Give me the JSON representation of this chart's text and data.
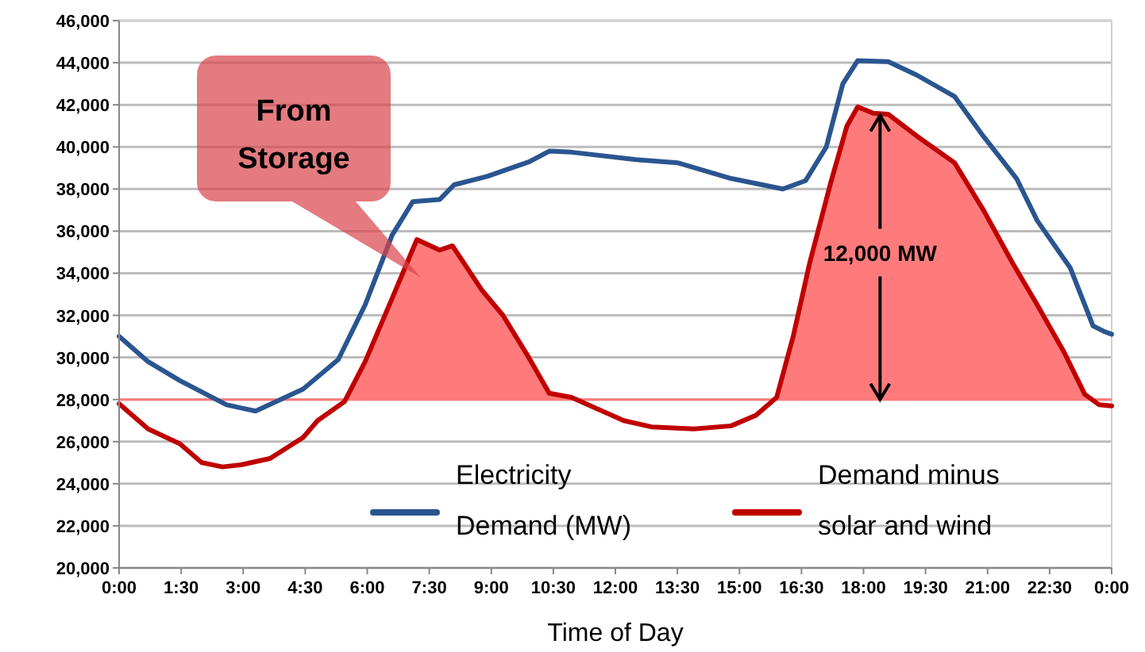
{
  "chart_data": {
    "type": "line",
    "xlabel": "Time of Day",
    "xlim": [
      0,
      24
    ],
    "xticks": [
      {
        "value": 0,
        "label": "0:00"
      },
      {
        "value": 1.5,
        "label": "1:30"
      },
      {
        "value": 3,
        "label": "3:00"
      },
      {
        "value": 4.5,
        "label": "4:30"
      },
      {
        "value": 6,
        "label": "6:00"
      },
      {
        "value": 7.5,
        "label": "7:30"
      },
      {
        "value": 9,
        "label": "9:00"
      },
      {
        "value": 10.5,
        "label": "10:30"
      },
      {
        "value": 12,
        "label": "12:00"
      },
      {
        "value": 13.5,
        "label": "13:30"
      },
      {
        "value": 15,
        "label": "15:00"
      },
      {
        "value": 16.5,
        "label": "16:30"
      },
      {
        "value": 18,
        "label": "18:00"
      },
      {
        "value": 19.5,
        "label": "19:30"
      },
      {
        "value": 21,
        "label": "21:00"
      },
      {
        "value": 22.5,
        "label": "22:30"
      },
      {
        "value": 24,
        "label": "0:00"
      }
    ],
    "ylim": [
      20000,
      46000
    ],
    "yticks": [
      {
        "value": 20000,
        "label": "20,000"
      },
      {
        "value": 22000,
        "label": "22,000"
      },
      {
        "value": 24000,
        "label": "24,000"
      },
      {
        "value": 26000,
        "label": "26,000"
      },
      {
        "value": 28000,
        "label": "28,000"
      },
      {
        "value": 30000,
        "label": "30,000"
      },
      {
        "value": 32000,
        "label": "32,000"
      },
      {
        "value": 34000,
        "label": "34,000"
      },
      {
        "value": 36000,
        "label": "36,000"
      },
      {
        "value": 38000,
        "label": "38,000"
      },
      {
        "value": 40000,
        "label": "40,000"
      },
      {
        "value": 42000,
        "label": "42,000"
      },
      {
        "value": 44000,
        "label": "44,000"
      },
      {
        "value": 46000,
        "label": "46,000"
      }
    ],
    "grid": "y",
    "legend": "bottom",
    "series": [
      {
        "name": "Electricity Demand (MW)",
        "color": "#2a5590",
        "x": [
          0,
          0.7,
          1.47,
          2.6,
          2.95,
          3.3,
          4.45,
          5.3,
          5.95,
          6.6,
          7.1,
          7.75,
          8.1,
          8.9,
          9.92,
          10.4,
          10.94,
          12.5,
          13.5,
          14.8,
          16.05,
          16.6,
          17.1,
          17.5,
          17.86,
          18.6,
          19.3,
          20.2,
          20.9,
          21.7,
          22.2,
          23.0,
          23.55,
          23.8,
          24
        ],
        "values": [
          31000,
          29800,
          28900,
          27750,
          27600,
          27450,
          28500,
          29900,
          32500,
          35800,
          37400,
          37500,
          38200,
          38600,
          39300,
          39800,
          39750,
          39400,
          39250,
          38500,
          38000,
          38400,
          40000,
          43000,
          44100,
          44050,
          43400,
          42400,
          40500,
          38500,
          36500,
          34250,
          31500,
          31250,
          31100
        ]
      },
      {
        "name": "Demand minus solar and wind",
        "color": "#c00000",
        "x": [
          0,
          0.7,
          1.47,
          2.0,
          2.5,
          2.95,
          3.65,
          4.45,
          4.8,
          5.45,
          5.95,
          6.6,
          7.2,
          7.75,
          8.06,
          8.77,
          9.28,
          9.92,
          10.4,
          10.94,
          12.2,
          12.87,
          13.9,
          14.8,
          15.4,
          15.9,
          16.3,
          16.7,
          17.2,
          17.6,
          17.86,
          18.24,
          18.6,
          19.3,
          20.2,
          20.9,
          21.6,
          22.2,
          22.85,
          23.35,
          23.7,
          24
        ],
        "values": [
          27800,
          26600,
          25900,
          25000,
          24800,
          24900,
          25200,
          26200,
          27000,
          27900,
          29800,
          32800,
          35600,
          35100,
          35300,
          33200,
          32000,
          29950,
          28300,
          28100,
          27000,
          26700,
          26600,
          26750,
          27250,
          28100,
          31000,
          34500,
          38250,
          41000,
          41900,
          41600,
          41550,
          40500,
          39250,
          37000,
          34500,
          32500,
          30250,
          28250,
          27750,
          27700
        ]
      }
    ],
    "ref_lines": [
      {
        "axis": "y",
        "value": 28000,
        "color": "#ff7b7b"
      }
    ],
    "annotations": [
      "From Storage",
      {
        "text": "12,000 MW",
        "x": 18.4,
        "y": 41500
      }
    ]
  }
}
